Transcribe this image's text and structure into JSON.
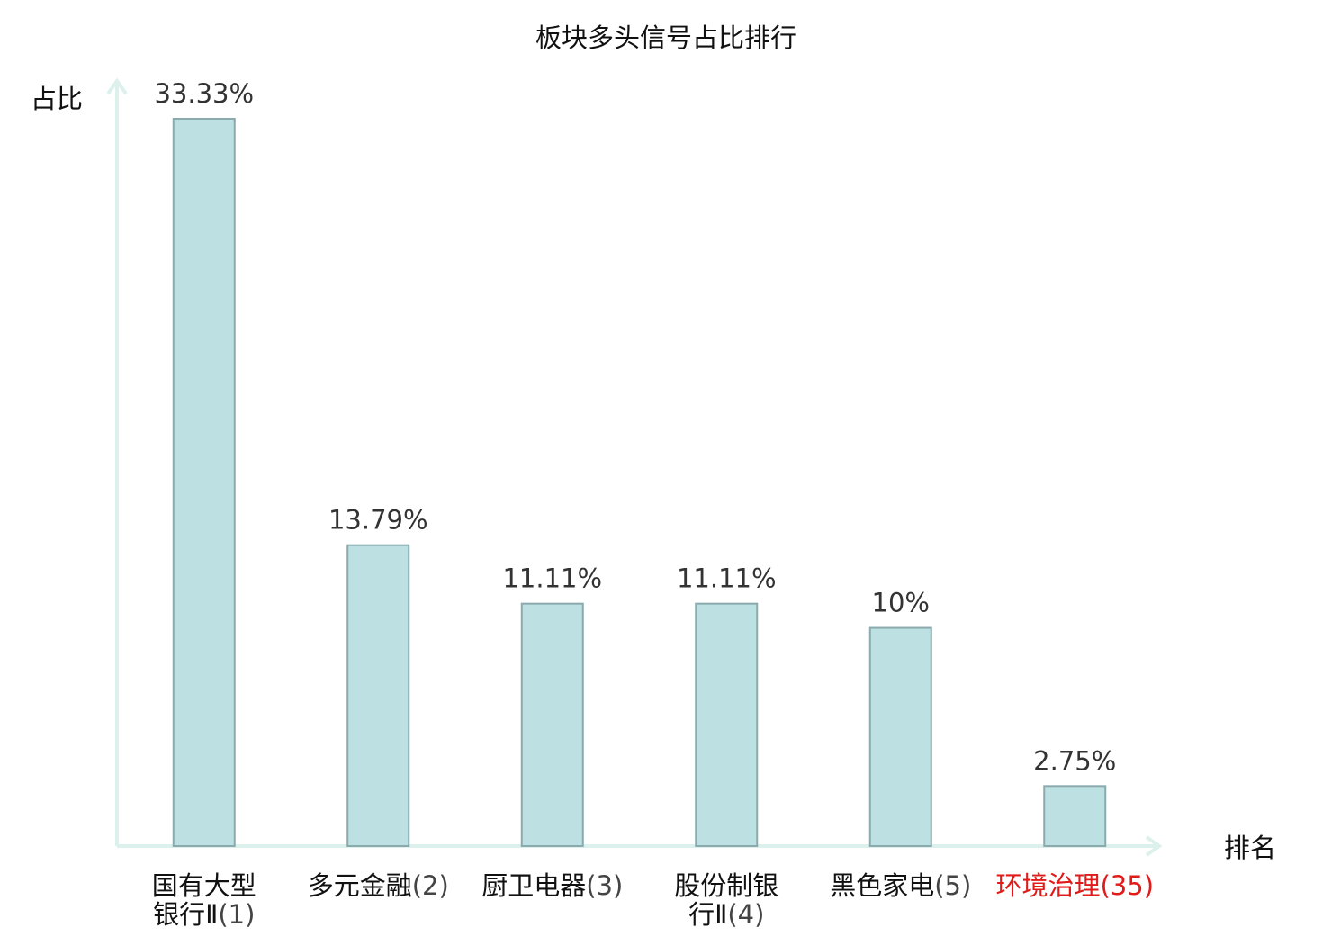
{
  "chart_data": {
    "type": "bar",
    "title": "板块多头信号占比排行",
    "ylabel": "占比",
    "xlabel": "排名",
    "ylim": [
      0,
      35
    ],
    "grid": false,
    "categories": [
      {
        "name_lines": [
          "国有大型",
          "银行Ⅱ"
        ],
        "rank": "(1)",
        "highlight": false
      },
      {
        "name_lines": [
          "多元金融"
        ],
        "rank": "(2)",
        "highlight": false
      },
      {
        "name_lines": [
          "厨卫电器"
        ],
        "rank": "(3)",
        "highlight": false
      },
      {
        "name_lines": [
          "股份制银",
          "行Ⅱ"
        ],
        "rank": "(4)",
        "highlight": false
      },
      {
        "name_lines": [
          "黑色家电"
        ],
        "rank": "(5)",
        "highlight": false
      },
      {
        "name_lines": [
          "环境治理"
        ],
        "rank": "(35)",
        "highlight": true
      }
    ],
    "values": [
      33.33,
      13.79,
      11.11,
      11.11,
      10,
      2.75
    ],
    "value_labels": [
      "33.33%",
      "13.79%",
      "11.11%",
      "11.11%",
      "10%",
      "2.75%"
    ]
  },
  "colors": {
    "bar_fill": "#bde0e3",
    "bar_stroke": "#8aaaad",
    "axis": "#dcf0ec",
    "highlight_text": "#e11a1a"
  }
}
